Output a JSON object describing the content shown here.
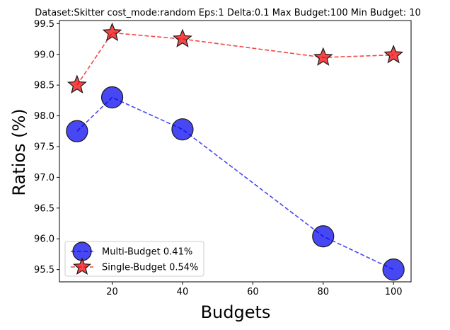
{
  "chart_data": {
    "type": "line",
    "title": "Dataset:Skitter cost_mode:random Eps:1 Delta:0.1 Max Budget:100 Min Budget: 10",
    "xlabel": "Budgets",
    "ylabel": "Ratios (%)",
    "xlim": [
      5,
      105
    ],
    "ylim": [
      95.3,
      99.55
    ],
    "xticks": [
      20,
      40,
      60,
      80,
      100
    ],
    "yticks": [
      95.5,
      96.0,
      96.5,
      97.0,
      97.5,
      98.0,
      98.5,
      99.0,
      99.5
    ],
    "ytick_labels": [
      "95.5",
      "96.0",
      "96.5",
      "97.0",
      "97.5",
      "98.0",
      "98.5",
      "99.0",
      "99.5"
    ],
    "legend_position": "lower-left",
    "series": [
      {
        "name": "Multi-Budget 0.41%",
        "marker": "circle",
        "line_style": "dashed",
        "color": "#0000ee",
        "x": [
          10,
          20,
          40,
          80,
          100
        ],
        "values": [
          97.75,
          98.3,
          97.78,
          96.04,
          95.5
        ]
      },
      {
        "name": "Single-Budget 0.54%",
        "marker": "star",
        "line_style": "dashed",
        "color": "#ee0000",
        "x": [
          10,
          20,
          40,
          80,
          100
        ],
        "values": [
          98.5,
          99.35,
          99.25,
          98.95,
          98.99
        ]
      }
    ]
  }
}
